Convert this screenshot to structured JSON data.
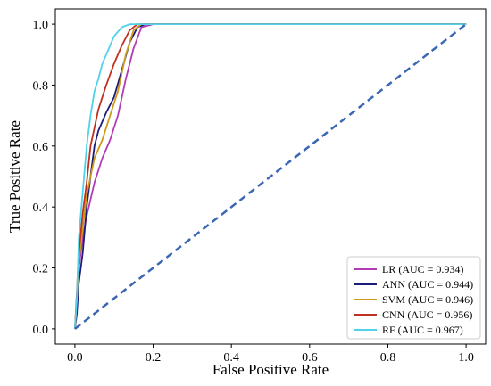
{
  "chart_data": {
    "type": "line",
    "title": "",
    "xlabel": "False Positive Rate",
    "ylabel": "True Positive Rate",
    "xlim": [
      -0.05,
      1.05
    ],
    "ylim": [
      -0.05,
      1.05
    ],
    "xticks": [
      "0.0",
      "0.2",
      "0.4",
      "0.6",
      "0.8",
      "1.0"
    ],
    "yticks": [
      "0.0",
      "0.2",
      "0.4",
      "0.6",
      "0.8",
      "1.0"
    ],
    "grid": false,
    "legend_position": "bottom-right",
    "series": [
      {
        "name": "LR (AUC = 0.934)",
        "color": "#b23cb5",
        "x": [
          0.0,
          0.005,
          0.01,
          0.02,
          0.03,
          0.05,
          0.07,
          0.09,
          0.11,
          0.13,
          0.15,
          0.17,
          0.2,
          1.0
        ],
        "y": [
          0.0,
          0.08,
          0.2,
          0.3,
          0.37,
          0.48,
          0.56,
          0.62,
          0.7,
          0.82,
          0.92,
          0.99,
          1.0,
          1.0
        ]
      },
      {
        "name": "ANN (AUC = 0.944)",
        "color": "#1c1c7a",
        "x": [
          0.0,
          0.005,
          0.01,
          0.02,
          0.03,
          0.04,
          0.05,
          0.06,
          0.08,
          0.1,
          0.12,
          0.14,
          0.16,
          0.18,
          1.0
        ],
        "y": [
          0.0,
          0.05,
          0.15,
          0.25,
          0.4,
          0.5,
          0.6,
          0.65,
          0.71,
          0.76,
          0.85,
          0.94,
          0.99,
          1.0,
          1.0
        ]
      },
      {
        "name": "SVM (AUC = 0.946)",
        "color": "#cc9a1a",
        "x": [
          0.0,
          0.005,
          0.01,
          0.02,
          0.03,
          0.05,
          0.07,
          0.09,
          0.11,
          0.13,
          0.15,
          0.17,
          1.0
        ],
        "y": [
          0.0,
          0.1,
          0.22,
          0.33,
          0.44,
          0.56,
          0.62,
          0.7,
          0.78,
          0.9,
          0.98,
          1.0,
          1.0
        ]
      },
      {
        "name": "CNN (AUC = 0.956)",
        "color": "#c03020",
        "x": [
          0.0,
          0.005,
          0.01,
          0.02,
          0.03,
          0.04,
          0.06,
          0.08,
          0.1,
          0.12,
          0.14,
          0.16,
          1.0
        ],
        "y": [
          0.0,
          0.12,
          0.25,
          0.38,
          0.48,
          0.6,
          0.72,
          0.8,
          0.87,
          0.93,
          0.98,
          1.0,
          1.0
        ]
      },
      {
        "name": "RF (AUC = 0.967)",
        "color": "#4fd2ea",
        "x": [
          0.0,
          0.005,
          0.01,
          0.02,
          0.03,
          0.04,
          0.05,
          0.06,
          0.07,
          0.08,
          0.1,
          0.12,
          0.14,
          0.16,
          1.0
        ],
        "y": [
          0.0,
          0.1,
          0.3,
          0.45,
          0.6,
          0.7,
          0.78,
          0.82,
          0.87,
          0.9,
          0.96,
          0.99,
          1.0,
          1.0,
          1.0
        ]
      }
    ],
    "reference_line": {
      "color": "#3a66b3",
      "style": "dashed",
      "x": [
        0.0,
        1.0
      ],
      "y": [
        0.0,
        1.0
      ]
    }
  }
}
